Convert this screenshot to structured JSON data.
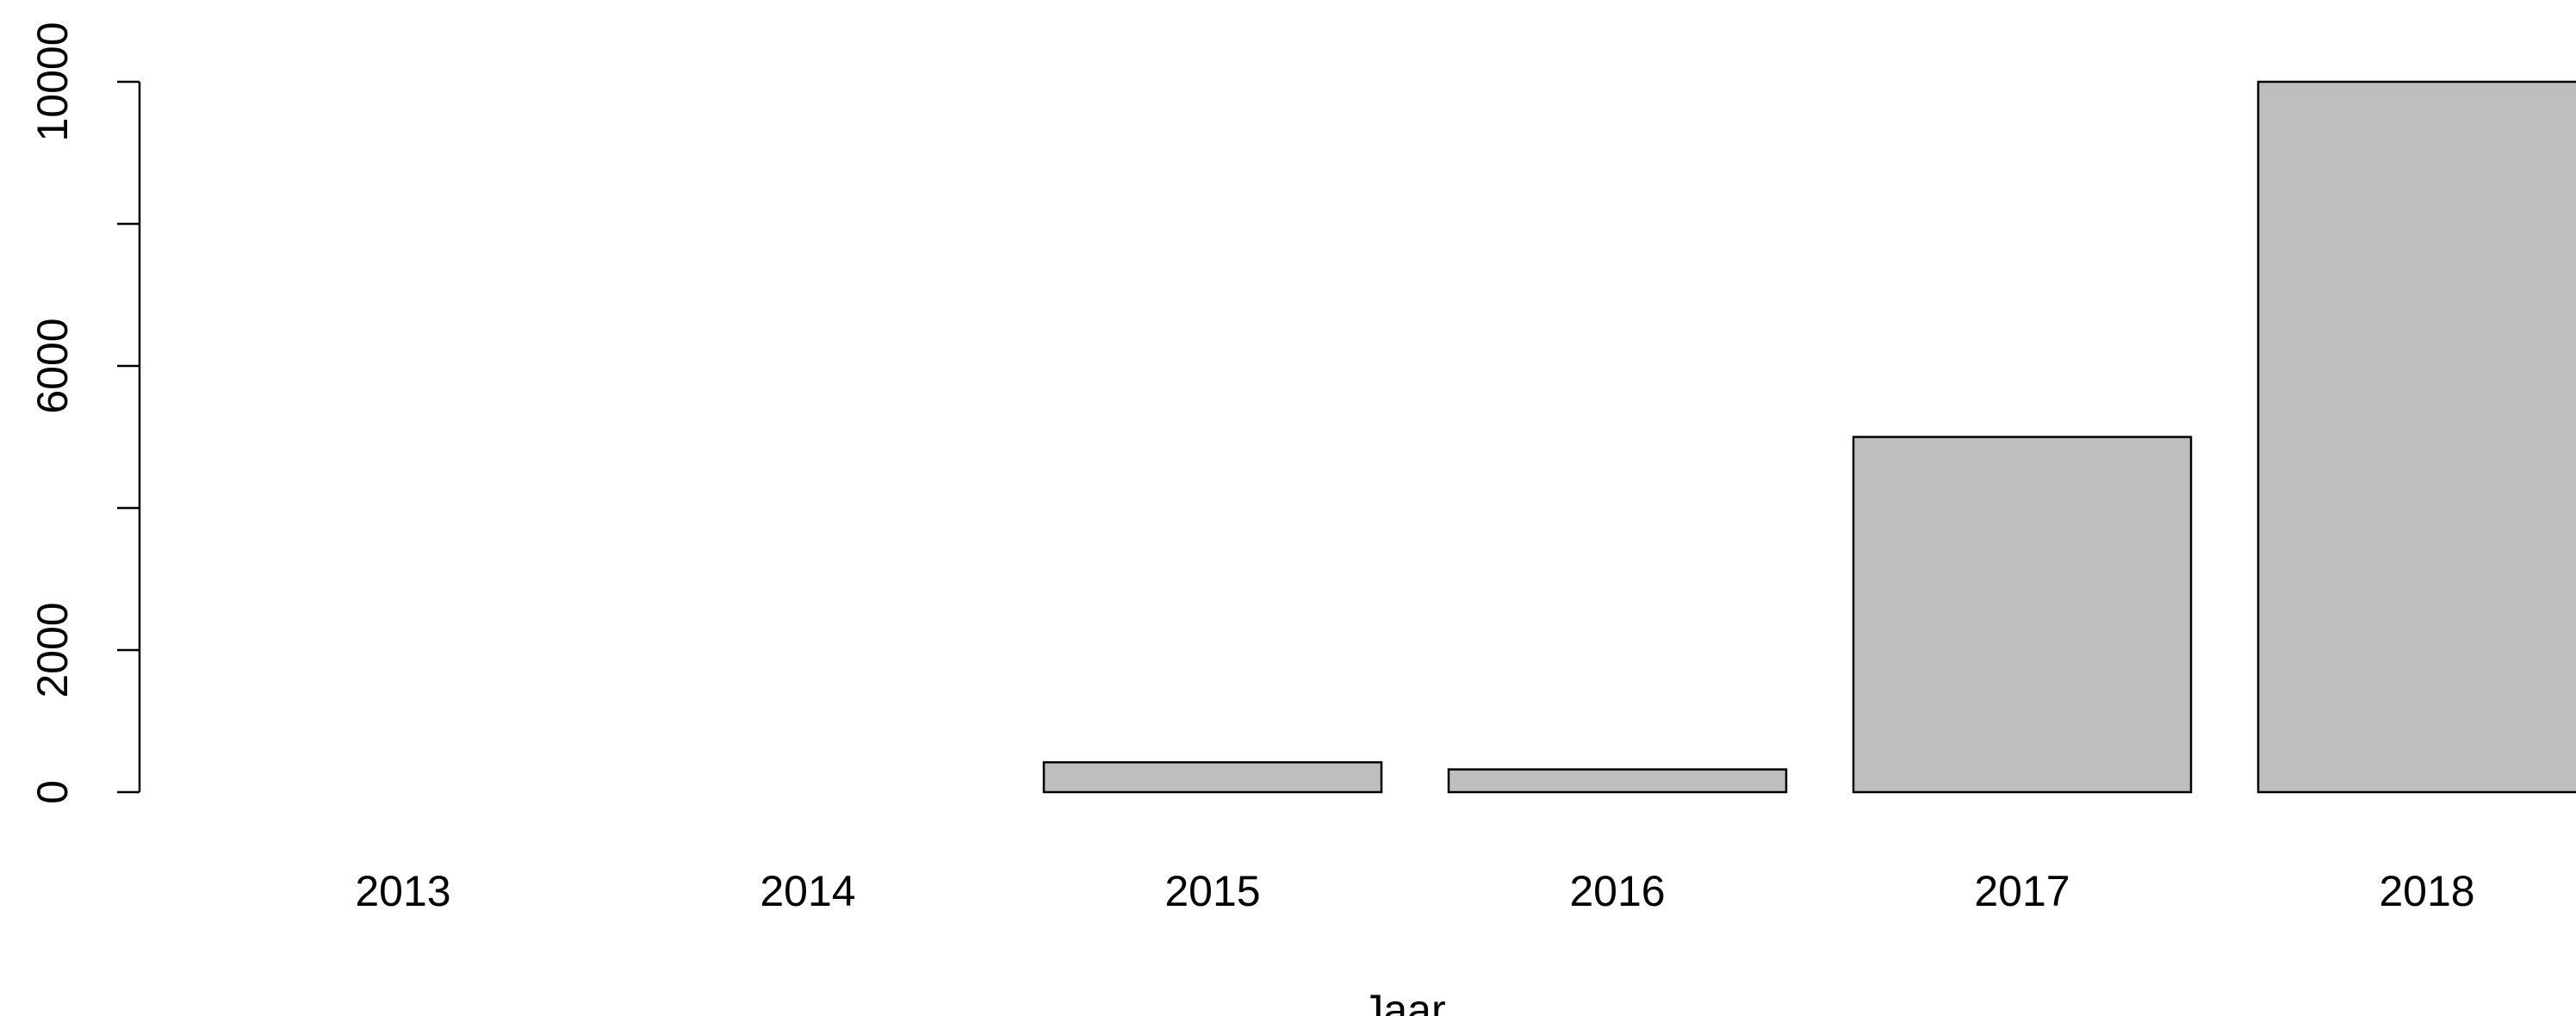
{
  "chart_data": {
    "type": "bar",
    "title": "",
    "xlabel": "Jaar",
    "ylabel": "",
    "categories": [
      "2013",
      "2014",
      "2015",
      "2016",
      "2017",
      "2018"
    ],
    "values": [
      0,
      0,
      420,
      320,
      5000,
      10000
    ],
    "ylim": [
      0,
      10000
    ],
    "yticks": [
      0,
      2000,
      6000,
      10000
    ],
    "yticks_unlabeled": [
      4000,
      8000
    ],
    "bar_fill": "#bebebe",
    "bar_stroke": "#000000",
    "grid": false,
    "legend": "none"
  }
}
